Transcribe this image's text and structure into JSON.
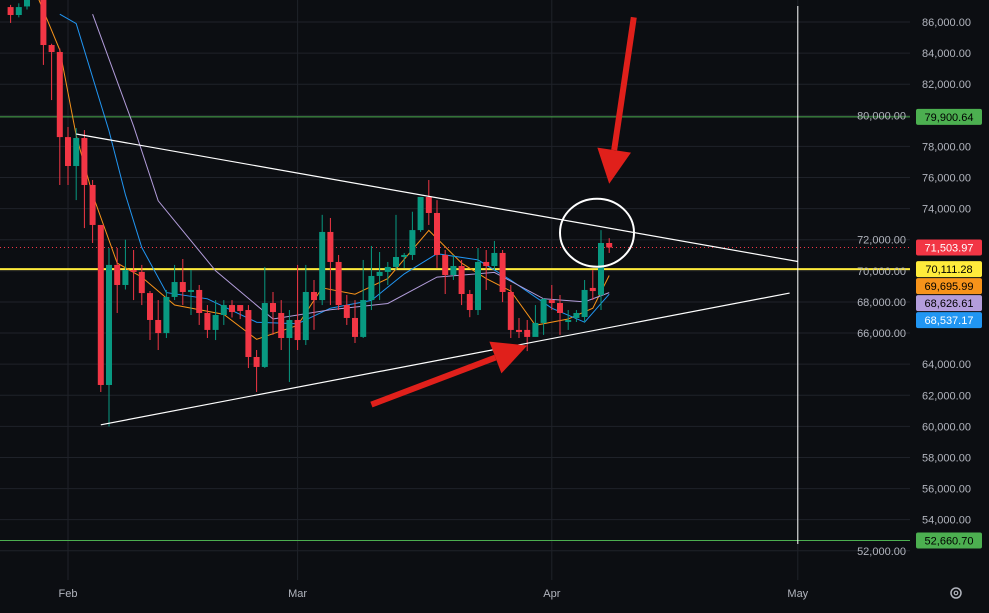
{
  "chart_data": {
    "type": "candlestick",
    "title": "",
    "y_axis": {
      "side": "right",
      "ylim": [
        51000,
        87000
      ],
      "ticks": [
        "52,000.00",
        "54,000.00",
        "56,000.00",
        "58,000.00",
        "60,000.00",
        "62,000.00",
        "64,000.00",
        "66,000.00",
        "68,000.00",
        "70,000.00",
        "72,000.00",
        "74,000.00",
        "76,000.00",
        "78,000.00",
        "80,000.00",
        "82,000.00",
        "84,000.00",
        "86,000.00"
      ]
    },
    "x_axis": {
      "ticks": [
        "Feb",
        "Mar",
        "Apr",
        "May"
      ]
    },
    "grid": true,
    "colors": {
      "background": "#0c0e12",
      "up": "#089981",
      "down": "#f23645",
      "grid": "#1f2229"
    },
    "candles_columns": [
      "date",
      "open",
      "high",
      "low",
      "close"
    ],
    "candles": [
      [
        "Jan 25",
        86960,
        87100,
        85940,
        86450
      ],
      [
        "Jan 26",
        86450,
        87200,
        86300,
        86960
      ],
      [
        "Jan 27",
        87000,
        89500,
        86800,
        88800
      ],
      [
        "Jan 28",
        88800,
        89800,
        88000,
        89100
      ],
      [
        "Jan 29",
        89100,
        89300,
        83240,
        84520
      ],
      [
        "Jan 30",
        84520,
        84600,
        80980,
        84070
      ],
      [
        "Jan 31",
        84070,
        84300,
        75520,
        78600
      ],
      [
        "Feb 1",
        78600,
        79250,
        75520,
        76740
      ],
      [
        "Feb 2",
        76740,
        79180,
        74550,
        78540
      ],
      [
        "Feb 3",
        78540,
        79050,
        72750,
        75520
      ],
      [
        "Feb 4",
        75520,
        75840,
        71790,
        72950
      ],
      [
        "Feb 5",
        72950,
        72950,
        62210,
        62660
      ],
      [
        "Feb 6",
        62660,
        71470,
        59990,
        70380
      ],
      [
        "Feb 7",
        70380,
        71470,
        67290,
        69090
      ],
      [
        "Feb 8",
        69090,
        72000,
        68800,
        70050
      ],
      [
        "Feb 9",
        70050,
        71340,
        68120,
        69930
      ],
      [
        "Feb 10",
        69930,
        70380,
        67800,
        68570
      ],
      [
        "Feb 11",
        68570,
        68700,
        65550,
        66840
      ],
      [
        "Feb 12",
        66840,
        68120,
        64910,
        66000
      ],
      [
        "Feb 13",
        66000,
        68770,
        65680,
        68320
      ],
      [
        "Feb 14",
        68320,
        70380,
        68120,
        69280
      ],
      [
        "Feb 15",
        69280,
        70760,
        67800,
        68640
      ],
      [
        "Feb 16",
        68640,
        70050,
        67160,
        68770
      ],
      [
        "Feb 17",
        68770,
        69090,
        66520,
        67290
      ],
      [
        "Feb 18",
        67290,
        67800,
        65680,
        66200
      ],
      [
        "Feb 19",
        66200,
        68120,
        65550,
        67160
      ],
      [
        "Feb 20",
        67160,
        68120,
        66520,
        67800
      ],
      [
        "Feb 21",
        67800,
        68120,
        67000,
        67350
      ],
      [
        "Feb 22",
        67800,
        67800,
        66900,
        67420
      ],
      [
        "Feb 23",
        67480,
        67800,
        63750,
        64460
      ],
      [
        "Feb 24",
        64460,
        64910,
        62210,
        63820
      ],
      [
        "Feb 25",
        63820,
        70250,
        63750,
        67930
      ],
      [
        "Feb 26",
        67930,
        68640,
        65880,
        67350
      ],
      [
        "Feb 27",
        67290,
        68120,
        64910,
        65680
      ],
      [
        "Feb 28",
        65680,
        67480,
        62850,
        66840
      ],
      [
        "Mar 1",
        66840,
        70380,
        64910,
        65550
      ],
      [
        "Mar 2",
        65550,
        70380,
        65230,
        68640
      ],
      [
        "Mar 3",
        68640,
        69410,
        66200,
        68120
      ],
      [
        "Mar 4",
        68120,
        73600,
        67800,
        72500
      ],
      [
        "Mar 5",
        72500,
        73400,
        67800,
        70570
      ],
      [
        "Mar 6",
        70570,
        71020,
        67480,
        67800
      ],
      [
        "Mar 7",
        67800,
        68450,
        66520,
        66970
      ],
      [
        "Mar 8",
        66970,
        68120,
        65360,
        65750
      ],
      [
        "Mar 9",
        65750,
        70700,
        65680,
        68120
      ],
      [
        "Mar 10",
        68120,
        71600,
        67480,
        69670
      ],
      [
        "Mar 11",
        69670,
        71210,
        68120,
        69930
      ],
      [
        "Mar 12",
        69930,
        70570,
        69090,
        70250
      ],
      [
        "Mar 13",
        70250,
        73600,
        70050,
        70890
      ],
      [
        "Mar 14",
        70890,
        71150,
        70180,
        71020
      ],
      [
        "Mar 15",
        71020,
        73800,
        70700,
        72620
      ],
      [
        "Mar 16",
        72620,
        74750,
        72500,
        74750
      ],
      [
        "Mar 17",
        74750,
        75840,
        72950,
        73720
      ],
      [
        "Mar 18",
        73720,
        74550,
        70180,
        71020
      ],
      [
        "Mar 19",
        71020,
        71340,
        68510,
        69730
      ],
      [
        "Mar 20",
        69730,
        71020,
        69410,
        70310
      ],
      [
        "Mar 21",
        70310,
        70700,
        67800,
        68510
      ],
      [
        "Mar 22",
        68510,
        68770,
        67020,
        67480
      ],
      [
        "Mar 23",
        67480,
        71470,
        67160,
        70570
      ],
      [
        "Mar 24",
        70570,
        71340,
        68770,
        70310
      ],
      [
        "Mar 25",
        70310,
        71920,
        70050,
        71150
      ],
      [
        "Mar 26",
        71150,
        71340,
        67990,
        68640
      ],
      [
        "Mar 27",
        68640,
        69090,
        65680,
        66200
      ],
      [
        "Mar 28",
        66200,
        66970,
        65680,
        66070
      ],
      [
        "Mar 29",
        66200,
        66840,
        64840,
        65750
      ],
      [
        "Mar 30",
        65750,
        67800,
        65880,
        66650
      ],
      [
        "Mar 31",
        66650,
        68250,
        65880,
        68190
      ],
      [
        "Apr 1",
        68120,
        69090,
        67480,
        67930
      ],
      [
        "Apr 2",
        67930,
        68450,
        65880,
        67290
      ],
      [
        "Apr 3",
        66710,
        67480,
        66200,
        66840
      ],
      [
        "Apr 4",
        66970,
        67480,
        66710,
        67290
      ],
      [
        "Apr 5",
        67030,
        69410,
        66710,
        68770
      ],
      [
        "Apr 6",
        68900,
        70050,
        68120,
        68700
      ],
      [
        "Apr 7",
        68450,
        72620,
        67480,
        71790
      ],
      [
        "Apr 8",
        71790,
        72100,
        71150,
        71500
      ]
    ],
    "moving_averages": [
      {
        "color": "#f7931a",
        "last": "69,695.99",
        "points": [
          [
            "Jan 28",
            88000
          ],
          [
            "Jan 31",
            84200
          ],
          [
            "Feb 2",
            78700
          ],
          [
            "Feb 4",
            74900
          ],
          [
            "Feb 7",
            70500
          ],
          [
            "Feb 10",
            69600
          ],
          [
            "Feb 14",
            67800
          ],
          [
            "Feb 20",
            67200
          ],
          [
            "Feb 24",
            65600
          ],
          [
            "Mar 1",
            66500
          ],
          [
            "Mar 4",
            68900
          ],
          [
            "Mar 8",
            68500
          ],
          [
            "Mar 12",
            69500
          ],
          [
            "Mar 17",
            72600
          ],
          [
            "Mar 21",
            70500
          ],
          [
            "Mar 24",
            69500
          ],
          [
            "Mar 27",
            68700
          ],
          [
            "Mar 30",
            66500
          ],
          [
            "Apr 3",
            66900
          ],
          [
            "Apr 6",
            67600
          ],
          [
            "Apr 8",
            69700
          ]
        ]
      },
      {
        "color": "#2196f3",
        "last": "68,537.17",
        "points": [
          [
            "Jan 31",
            86500
          ],
          [
            "Feb 2",
            85900
          ],
          [
            "Feb 6",
            79000
          ],
          [
            "Feb 8",
            74900
          ],
          [
            "Feb 10",
            71500
          ],
          [
            "Feb 13",
            68600
          ],
          [
            "Feb 18",
            68200
          ],
          [
            "Feb 24",
            66700
          ],
          [
            "Mar 1",
            66600
          ],
          [
            "Mar 5",
            67600
          ],
          [
            "Mar 10",
            68100
          ],
          [
            "Mar 14",
            69800
          ],
          [
            "Mar 18",
            71100
          ],
          [
            "Mar 23",
            70700
          ],
          [
            "Mar 27",
            69400
          ],
          [
            "Apr 1",
            67600
          ],
          [
            "Apr 5",
            66700
          ],
          [
            "Apr 8",
            68500
          ]
        ]
      },
      {
        "color": "#b39ddb",
        "last": "68,626.61",
        "points": [
          [
            "Feb 4",
            86500
          ],
          [
            "Feb 9",
            79300
          ],
          [
            "Feb 12",
            74500
          ],
          [
            "Feb 19",
            70000
          ],
          [
            "Feb 26",
            66900
          ],
          [
            "Mar 5",
            67500
          ],
          [
            "Mar 12",
            67900
          ],
          [
            "Mar 18",
            69600
          ],
          [
            "Mar 25",
            69900
          ],
          [
            "Mar 31",
            68200
          ],
          [
            "Apr 5",
            68000
          ],
          [
            "Apr 8",
            68600
          ]
        ]
      }
    ],
    "horizontal_lines": [
      {
        "price": 79900.64,
        "label": "79,900.64",
        "color": "#4caf50",
        "text_color": "#000000",
        "style": "solid"
      },
      {
        "price": 70111.28,
        "label": "70,111.28",
        "color": "#ffeb3b",
        "text_color": "#000000",
        "style": "solid"
      },
      {
        "price": 52660.7,
        "label": "52,660.70",
        "color": "#4caf50",
        "text_color": "#000000",
        "style": "solid"
      }
    ],
    "last_price": {
      "price": 71503.97,
      "label": "71,503.97",
      "color": "#f23645"
    },
    "trendlines": [
      {
        "from": [
          "Feb 2",
          78800
        ],
        "to": [
          "May 1",
          70600
        ],
        "color": "#ffffff"
      },
      {
        "from": [
          "Feb 5",
          60100
        ],
        "to": [
          "Apr 30",
          68570
        ],
        "color": "#ffffff"
      }
    ],
    "vertical_line": {
      "date": "May 1",
      "color": "#ffffff"
    },
    "annotations": {
      "ellipse": {
        "center": [
          "Apr 7",
          72450
        ],
        "color": "#ffffff"
      },
      "arrows": [
        {
          "from": [
            "Apr 11",
            86300
          ],
          "to": [
            "Apr 8",
            75600
          ],
          "color": "#e0201b"
        },
        {
          "from": [
            "Mar 10",
            61400
          ],
          "to": [
            "Mar 29",
            65200
          ],
          "color": "#e0201b"
        }
      ]
    }
  },
  "toolbar": {
    "settings_icon": "gear-icon"
  }
}
